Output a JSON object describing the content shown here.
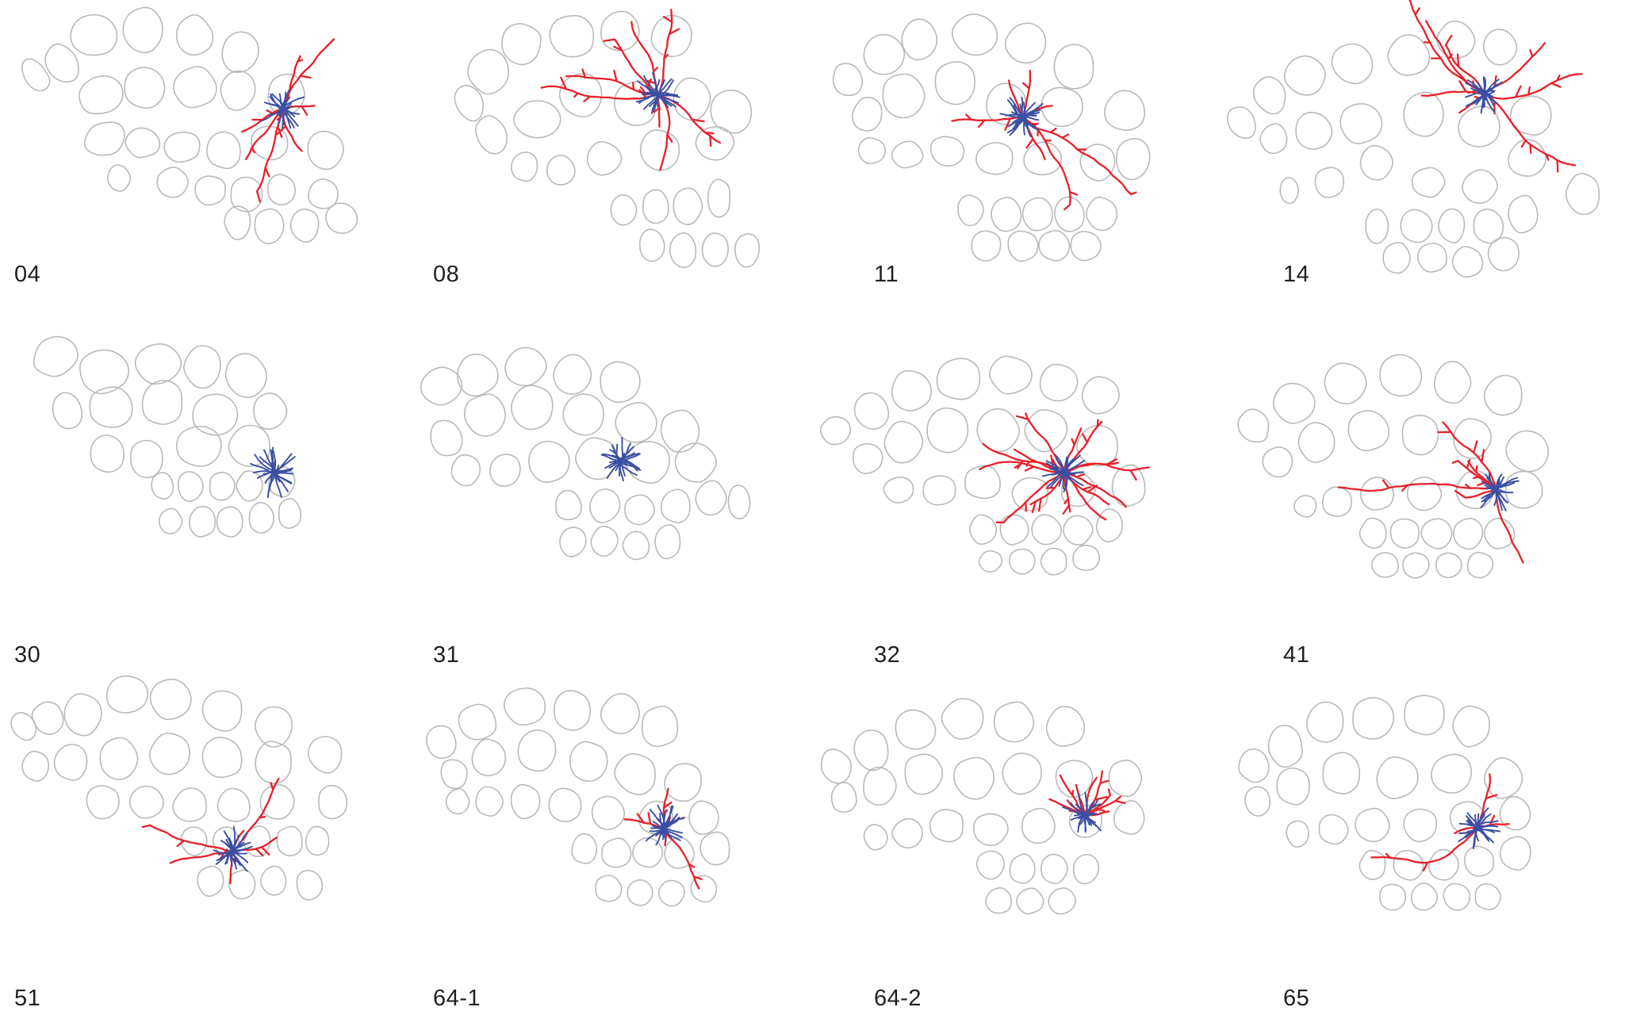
{
  "figure": {
    "panels": [
      {
        "label": "04"
      },
      {
        "label": "08"
      },
      {
        "label": "11"
      },
      {
        "label": "14"
      },
      {
        "label": "30"
      },
      {
        "label": "31"
      },
      {
        "label": "32"
      },
      {
        "label": "41"
      },
      {
        "label": "51"
      },
      {
        "label": "64-1"
      },
      {
        "label": "64-2"
      },
      {
        "label": "65"
      }
    ],
    "colors": {
      "outline": "#b9b9b9",
      "red_processes": "#e8202a",
      "blue_processes": "#3a4fa3",
      "label_text": "#231f20"
    }
  }
}
